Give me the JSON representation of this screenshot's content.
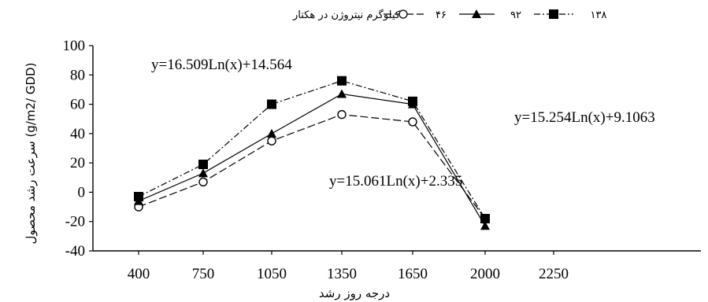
{
  "chart_data": {
    "type": "line",
    "title": "",
    "xlabel": "درجه روز رشد",
    "ylabel": "سرعت رشد محصول (g/m2/ GDD)",
    "x": [
      400,
      750,
      1050,
      1350,
      1650,
      2000
    ],
    "x_ticks": [
      "400",
      "750",
      "1050",
      "1350",
      "1650",
      "2000",
      "2250"
    ],
    "y_ticks": [
      "-40",
      "-20",
      "0",
      "20",
      "40",
      "60",
      "80",
      "100"
    ],
    "ylim": [
      -40,
      100
    ],
    "grid": false,
    "legend": {
      "placement": "top",
      "caption": "کیلوگرم نیتروژن در هکتار",
      "entries": [
        "۴۶",
        "۹۲",
        "۱۳۸"
      ]
    },
    "series": [
      {
        "name": "۴۶",
        "marker": "circle-open",
        "values": [
          -10,
          7,
          35,
          53,
          48,
          -18
        ]
      },
      {
        "name": "۹۲",
        "marker": "triangle",
        "values": [
          -6,
          13,
          40,
          67,
          60,
          -23
        ]
      },
      {
        "name": "۱۳۸",
        "marker": "square",
        "values": [
          -3,
          19,
          60,
          76,
          62,
          -18
        ]
      }
    ],
    "annotations": [
      "y=16.509Ln(x)+14.564",
      "y=15.254Ln(x)+9.1063",
      "y=15.061Ln(x)+2.335"
    ]
  }
}
